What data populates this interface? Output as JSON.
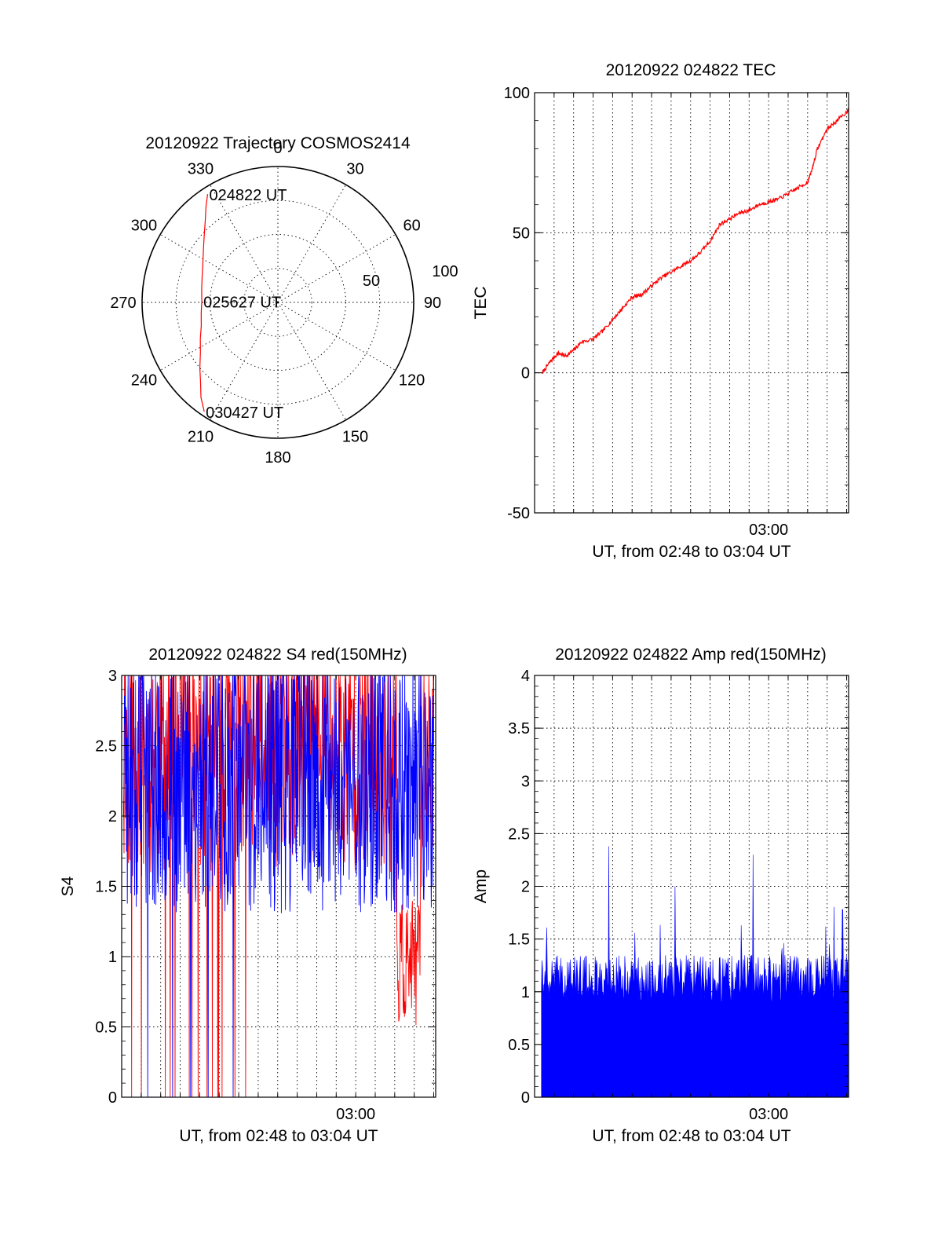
{
  "chart_data": [
    {
      "id": "trajectory",
      "type": "scatter",
      "subtype": "polar",
      "title": "20120922 Trajectory COSMOS2414",
      "azimuth_labels": [
        "0",
        "30",
        "60",
        "90",
        "120",
        "150",
        "180",
        "210",
        "240",
        "270",
        "300",
        "330"
      ],
      "radius_labels": [
        "50",
        "100"
      ],
      "radius_range": [
        0,
        100
      ],
      "grid": true,
      "track_color": "#ff0000",
      "track": {
        "azimuth_deg": [
          327,
          323,
          318,
          312,
          305,
          297,
          289,
          280,
          271,
          262,
          253,
          245,
          237,
          230,
          224,
          219,
          214
        ],
        "radius": [
          95,
          88,
          80,
          73,
          67,
          62,
          59,
          57,
          56,
          57,
          59,
          63,
          68,
          75,
          82,
          90,
          97
        ]
      },
      "annotations": [
        {
          "text": "024822 UT",
          "azimuth_deg": 327,
          "radius": 95
        },
        {
          "text": "025627 UT",
          "azimuth_deg": 271,
          "radius": 56
        },
        {
          "text": "030427 UT",
          "azimuth_deg": 214,
          "radius": 97
        }
      ]
    },
    {
      "id": "tec",
      "type": "line",
      "title": "20120922 024822 TEC",
      "xlabel": "UT, from 02:48 to 03:04 UT",
      "ylabel": "TEC",
      "xlim": [
        0,
        16.1
      ],
      "ylim": [
        -50,
        100
      ],
      "yticks": [
        "100",
        "50",
        "0",
        "-50"
      ],
      "xtick_label": "03:00",
      "grid": true,
      "color": "#ff0000",
      "series": [
        {
          "x": [
            0.4,
            0.8,
            1.2,
            1.6,
            2.0,
            2.4,
            3.0,
            3.5,
            4.0,
            4.5,
            5.0,
            5.5,
            6.0,
            6.5,
            7.0,
            7.5,
            8.0,
            8.5,
            9.0,
            9.5,
            10.0,
            10.5,
            11.0,
            11.5,
            12.0,
            12.5,
            13.0,
            13.5,
            14.0,
            14.2,
            14.5,
            15.0,
            15.5,
            16.0,
            16.1
          ],
          "y": [
            0,
            4,
            7,
            6,
            8,
            11,
            12,
            15,
            19,
            23,
            27,
            28,
            31,
            34,
            36,
            38,
            40,
            43,
            47,
            53,
            55,
            57,
            58,
            60,
            61,
            62,
            64,
            66,
            68,
            72,
            80,
            87,
            90,
            93,
            94
          ]
        }
      ]
    },
    {
      "id": "s4",
      "type": "line",
      "title": "20120922 024822 S4 red(150MHz)",
      "xlabel": "UT, from 02:48 to 03:04 UT",
      "ylabel": "S4",
      "xlim": [
        0,
        16.1
      ],
      "ylim": [
        0,
        3
      ],
      "yticks": [
        "3",
        "2.5",
        "2",
        "1.5",
        "1",
        "0.5",
        "0"
      ],
      "xtick_label": "03:00",
      "grid": true,
      "series": [
        {
          "name": "",
          "color": "#ff0000"
        },
        {
          "name": "",
          "color": "#0000ff"
        }
      ]
    },
    {
      "id": "amp",
      "type": "bar",
      "title": "20120922 024822 Amp red(150MHz)",
      "xlabel": "UT, from 02:48 to 03:04 UT",
      "ylabel": "Amp",
      "xlim": [
        0,
        16.1
      ],
      "ylim": [
        0,
        4
      ],
      "yticks": [
        "4",
        "3.5",
        "3",
        "2.5",
        "2",
        "1.5",
        "1",
        "0.5",
        "0"
      ],
      "xtick_label": "03:00",
      "grid": true,
      "color": "#0000ff",
      "baseline": 1.1,
      "notable_peaks": [
        {
          "x": 3.8,
          "y": 2.38
        },
        {
          "x": 7.2,
          "y": 2.0
        },
        {
          "x": 11.2,
          "y": 2.3
        },
        {
          "x": 15.8,
          "y": 1.78
        }
      ]
    }
  ]
}
